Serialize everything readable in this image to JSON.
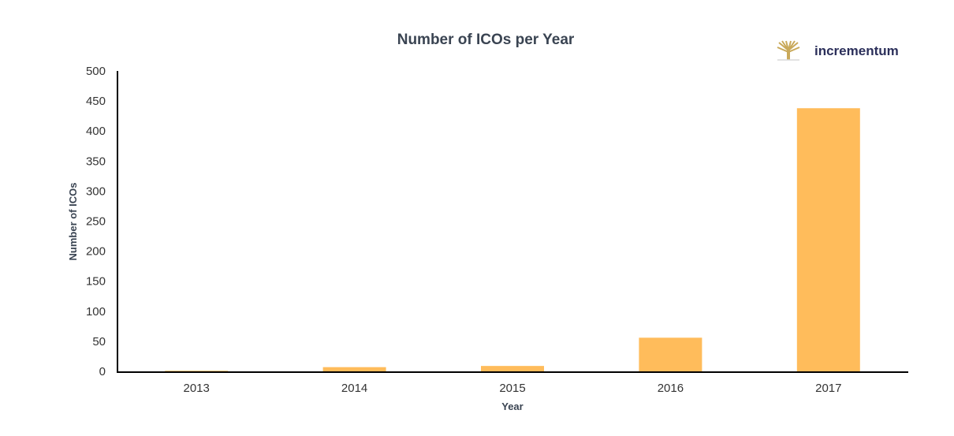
{
  "logo": {
    "name": "incrementum",
    "icon": "tree-icon",
    "icon_color": "#c9a95a",
    "text_color": "#2b2f5a"
  },
  "chart_data": {
    "type": "bar",
    "title": "Number of ICOs per Year",
    "xlabel": "Year",
    "ylabel": "Number of ICOs",
    "categories": [
      "2013",
      "2014",
      "2015",
      "2016",
      "2017"
    ],
    "values": [
      1,
      7,
      9,
      56,
      438
    ],
    "ylim": [
      0,
      500
    ],
    "yticks": [
      0,
      50,
      100,
      150,
      200,
      250,
      300,
      350,
      400,
      450,
      500
    ],
    "grid": false,
    "legend": "none",
    "bar_color": "#ffbc5b"
  }
}
